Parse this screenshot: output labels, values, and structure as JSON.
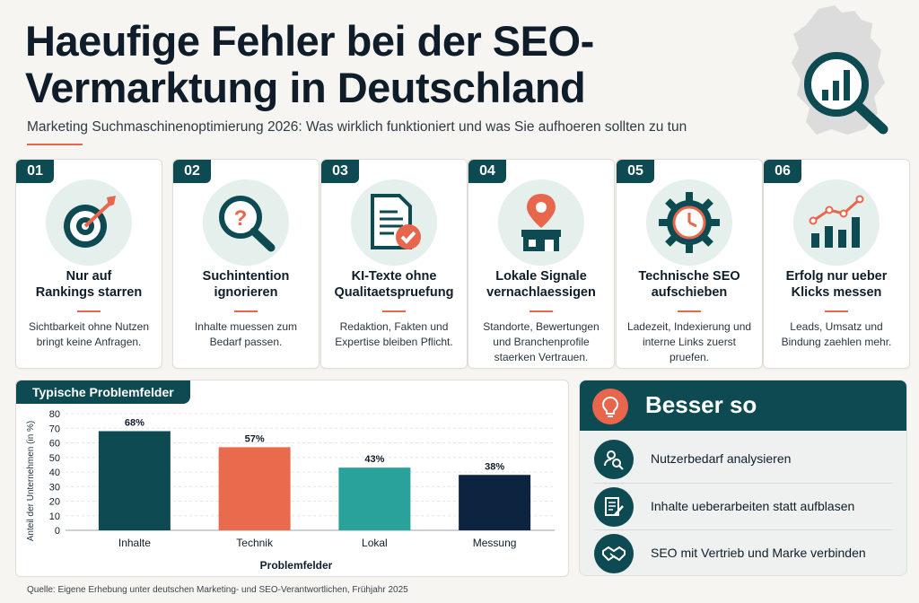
{
  "header": {
    "title": "Haeufige Fehler bei der SEO-Vermarktung in Deutschland",
    "subtitle": "Marketing Suchmaschinenoptimierung 2026: Was wirklich funktioniert und was Sie aufhoeren sollten zu tun"
  },
  "cards": [
    {
      "num": "01",
      "title": "Nur auf\nRankings starren",
      "desc": "Sichtbarkeit ohne Nutzen\nbringt keine Anfragen.",
      "icon": "target-icon"
    },
    {
      "num": "02",
      "title": "Suchintention\nignorieren",
      "desc": "Inhalte muessen zum\nBedarf passen.",
      "icon": "magnifier-question-icon"
    },
    {
      "num": "03",
      "title": "KI-Texte ohne\nQualitaetspruefung",
      "desc": "Redaktion, Fakten und\nExpertise bleiben Pflicht.",
      "icon": "document-check-icon"
    },
    {
      "num": "04",
      "title": "Lokale Signale\nvernachlaessigen",
      "desc": "Standorte, Bewertungen\nund Branchenprofile\nstaerken Vertrauen.",
      "icon": "store-pin-icon"
    },
    {
      "num": "05",
      "title": "Technische SEO\naufschieben",
      "desc": "Ladezeit, Indexierung und\ninterne Links zuerst\npruefen.",
      "icon": "gear-clock-icon"
    },
    {
      "num": "06",
      "title": "Erfolg nur ueber\nKlicks messen",
      "desc": "Leads, Umsatz und\nBindung zaehlen mehr.",
      "icon": "growth-chart-icon"
    }
  ],
  "chart_panel": {
    "tab_label": "Typische Problemfelder"
  },
  "chart_data": {
    "type": "bar",
    "categories": [
      "Inhalte",
      "Technik",
      "Lokal",
      "Messung"
    ],
    "values": [
      68,
      57,
      43,
      38
    ],
    "value_labels": [
      "68%",
      "57%",
      "43%",
      "38%"
    ],
    "colors": [
      "#0e4a52",
      "#ea6a4e",
      "#2aa29c",
      "#0d2440"
    ],
    "title": "Typische Problemfelder",
    "xlabel": "Problemfelder",
    "ylabel": "Anteil der Unternehmen (in %)",
    "ylim": [
      0,
      80
    ],
    "yticks": [
      0,
      10,
      20,
      30,
      40,
      50,
      60,
      70,
      80
    ],
    "grid": true
  },
  "better": {
    "title": "Besser so",
    "items": [
      {
        "label": "Nutzerbedarf analysieren",
        "icon": "user-search-icon"
      },
      {
        "label": "Inhalte ueberarbeiten statt aufblasen",
        "icon": "edit-document-icon"
      },
      {
        "label": "SEO mit Vertrieb und Marke verbinden",
        "icon": "handshake-icon"
      }
    ]
  },
  "source": "Quelle: Eigene Erhebung unter deutschen Marketing- und SEO-Verantwortlichen, Frühjahr 2025",
  "colors": {
    "primary": "#0e4a52",
    "accent": "#e8664c",
    "teal": "#2aa29c",
    "navy": "#0d2440"
  }
}
